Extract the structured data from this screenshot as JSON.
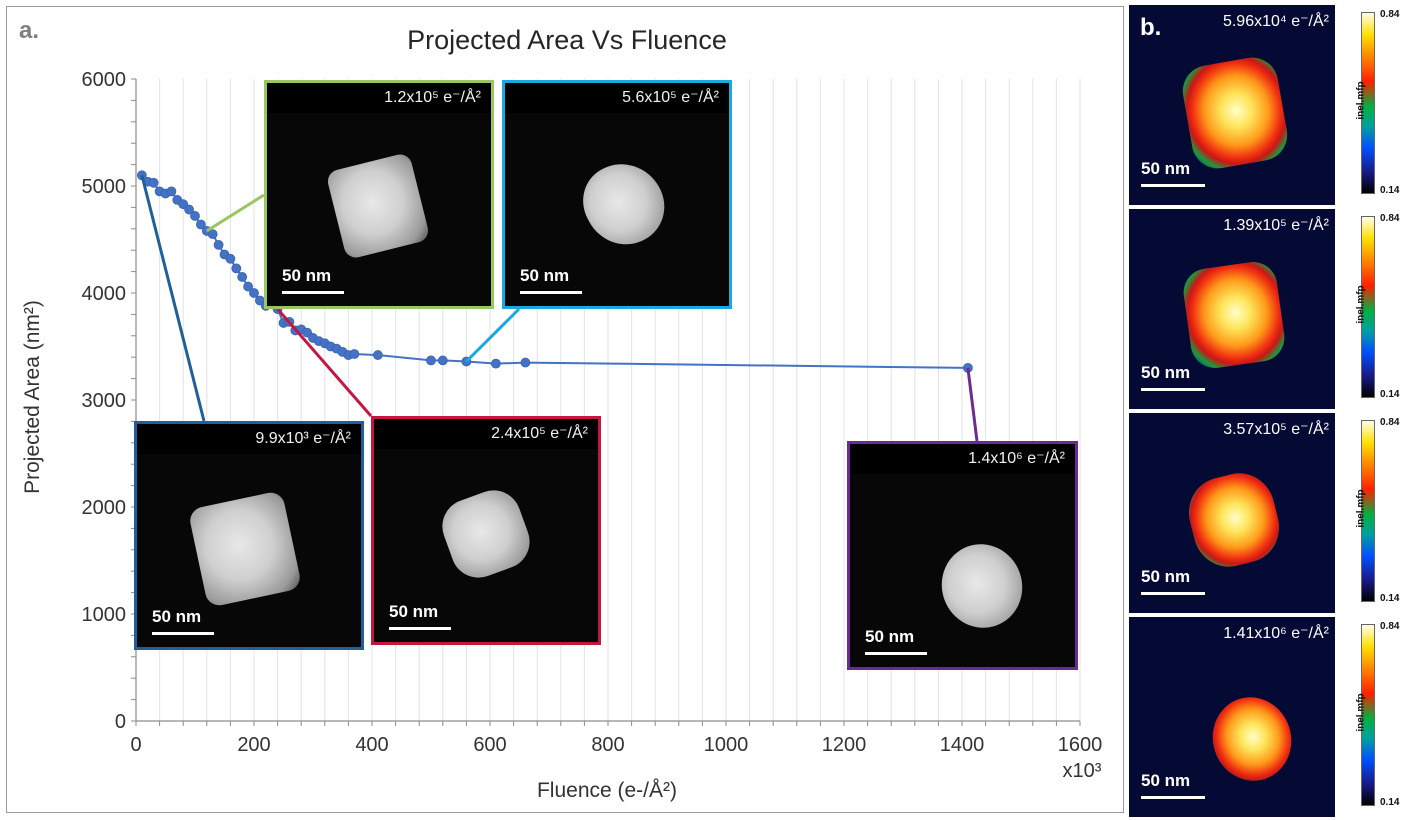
{
  "panel_a": {
    "letter": "a.",
    "scale_bar_label": "50 nm",
    "insets": [
      {
        "fluence": "9.9x10³ e⁻/Å²",
        "color": "#1f5f9a"
      },
      {
        "fluence": "1.2x10⁵ e⁻/Å²",
        "color": "#9ac561"
      },
      {
        "fluence": "2.4x10⁵ e⁻/Å²",
        "color": "#c4163f"
      },
      {
        "fluence": "5.6x10⁵ e⁻/Å²",
        "color": "#19a9df"
      },
      {
        "fluence": "1.4x10⁶ e⁻/Å²",
        "color": "#6c2a93"
      }
    ]
  },
  "panel_b": {
    "letter": "b.",
    "scale_bar_label": "50 nm",
    "colorbar_title": "inel.mfp",
    "colorbar_max": "0.84",
    "colorbar_min": "0.14",
    "maps": [
      {
        "fluence": "5.96x10⁴ e⁻/Å²"
      },
      {
        "fluence": "1.39x10⁵ e⁻/Å²"
      },
      {
        "fluence": "3.57x10⁵ e⁻/Å²"
      },
      {
        "fluence": "1.41x10⁶ e⁻/Å²"
      }
    ]
  },
  "chart_data": {
    "type": "line",
    "title": "Projected Area Vs Fluence",
    "xlabel": "Fluence (e-/Å²)",
    "x_multiplier_label": "x10³",
    "ylabel": "Projected Area (nm²)",
    "xlim": [
      0,
      1600
    ],
    "ylim": [
      0,
      6000
    ],
    "xticks": [
      0,
      200,
      400,
      600,
      800,
      1000,
      1200,
      1400,
      1600
    ],
    "yticks": [
      0,
      1000,
      2000,
      3000,
      4000,
      5000,
      6000
    ],
    "grid": "vertical",
    "line_color": "#4472c4",
    "series": [
      {
        "x": [
          10,
          20,
          30,
          40,
          50,
          60,
          70,
          80,
          90,
          100,
          110,
          120,
          130,
          140,
          150,
          160,
          170,
          180,
          190,
          200,
          210,
          220,
          230,
          240,
          250,
          260,
          270,
          280,
          290,
          300,
          310,
          320,
          330,
          340,
          350,
          360,
          370,
          410,
          500,
          520,
          560,
          610,
          660,
          1410
        ],
        "y": [
          5100,
          5040,
          5030,
          4950,
          4930,
          4950,
          4870,
          4830,
          4780,
          4720,
          4640,
          4580,
          4550,
          4450,
          4360,
          4320,
          4230,
          4150,
          4060,
          4000,
          3930,
          3880,
          3900,
          3850,
          3720,
          3730,
          3650,
          3660,
          3630,
          3580,
          3550,
          3530,
          3500,
          3480,
          3450,
          3420,
          3430,
          3420,
          3370,
          3370,
          3360,
          3340,
          3350,
          3300
        ]
      }
    ]
  }
}
